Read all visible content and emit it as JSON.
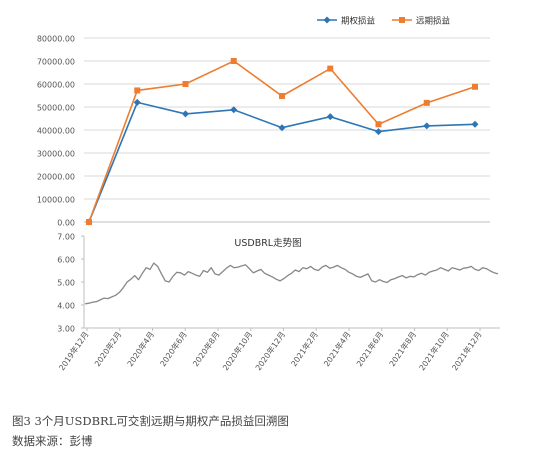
{
  "chart_data": [
    {
      "type": "line",
      "legend_position": "top-right",
      "y_axis": {
        "min": 0,
        "max": 80000,
        "step": 10000,
        "tick_labels": [
          "0.00",
          "10000.00",
          "20000.00",
          "30000.00",
          "40000.00",
          "50000.00",
          "60000.00",
          "70000.00",
          "80000.00"
        ]
      },
      "grid": true,
      "series": [
        {
          "name": "期权损益",
          "color": "#2e75b6",
          "marker": "diamond",
          "values": [
            0,
            52000,
            47000,
            48800,
            41000,
            45800,
            39300,
            41800,
            42500
          ]
        },
        {
          "name": "远期损益",
          "color": "#ed7d31",
          "marker": "square",
          "values": [
            0,
            57200,
            60000,
            70000,
            54800,
            66700,
            42500,
            51800,
            58800
          ]
        }
      ]
    },
    {
      "type": "line",
      "title": "USDBRL走势图",
      "y_axis": {
        "min": 3,
        "max": 7,
        "step": 1,
        "tick_labels": [
          "3.00",
          "4.00",
          "5.00",
          "6.00",
          "7.00"
        ]
      },
      "grid": false,
      "x_tick_labels": [
        "2019年12月",
        "2020年2月",
        "2020年4月",
        "2020年6月",
        "2020年8月",
        "2020年10月",
        "2020年12月",
        "2021年2月",
        "2021年4月",
        "2021年6月",
        "2021年8月",
        "2021年10月",
        "2021年12月"
      ],
      "series": [
        {
          "color": "#888888",
          "values": [
            4.05,
            4.08,
            4.12,
            4.15,
            4.22,
            4.3,
            4.28,
            4.35,
            4.42,
            4.55,
            4.75,
            5.0,
            5.12,
            5.28,
            5.1,
            5.38,
            5.62,
            5.55,
            5.82,
            5.68,
            5.35,
            5.05,
            5.0,
            5.25,
            5.42,
            5.4,
            5.3,
            5.45,
            5.38,
            5.3,
            5.25,
            5.5,
            5.42,
            5.62,
            5.35,
            5.3,
            5.45,
            5.6,
            5.72,
            5.62,
            5.65,
            5.7,
            5.75,
            5.58,
            5.4,
            5.48,
            5.55,
            5.38,
            5.3,
            5.22,
            5.12,
            5.05,
            5.15,
            5.28,
            5.38,
            5.52,
            5.45,
            5.62,
            5.58,
            5.68,
            5.55,
            5.5,
            5.65,
            5.72,
            5.6,
            5.65,
            5.72,
            5.62,
            5.55,
            5.42,
            5.35,
            5.25,
            5.2,
            5.28,
            5.35,
            5.05,
            5.0,
            5.1,
            5.02,
            4.98,
            5.1,
            5.15,
            5.22,
            5.28,
            5.18,
            5.25,
            5.22,
            5.32,
            5.38,
            5.3,
            5.42,
            5.48,
            5.52,
            5.62,
            5.55,
            5.48,
            5.62,
            5.58,
            5.52,
            5.6,
            5.62,
            5.68,
            5.55,
            5.5,
            5.62,
            5.58,
            5.48,
            5.4,
            5.35
          ]
        }
      ]
    }
  ],
  "captions": {
    "figure": "图3 3个月USDBRL可交割远期与期权产品损益回溯图",
    "source": "数据来源：彭博"
  }
}
